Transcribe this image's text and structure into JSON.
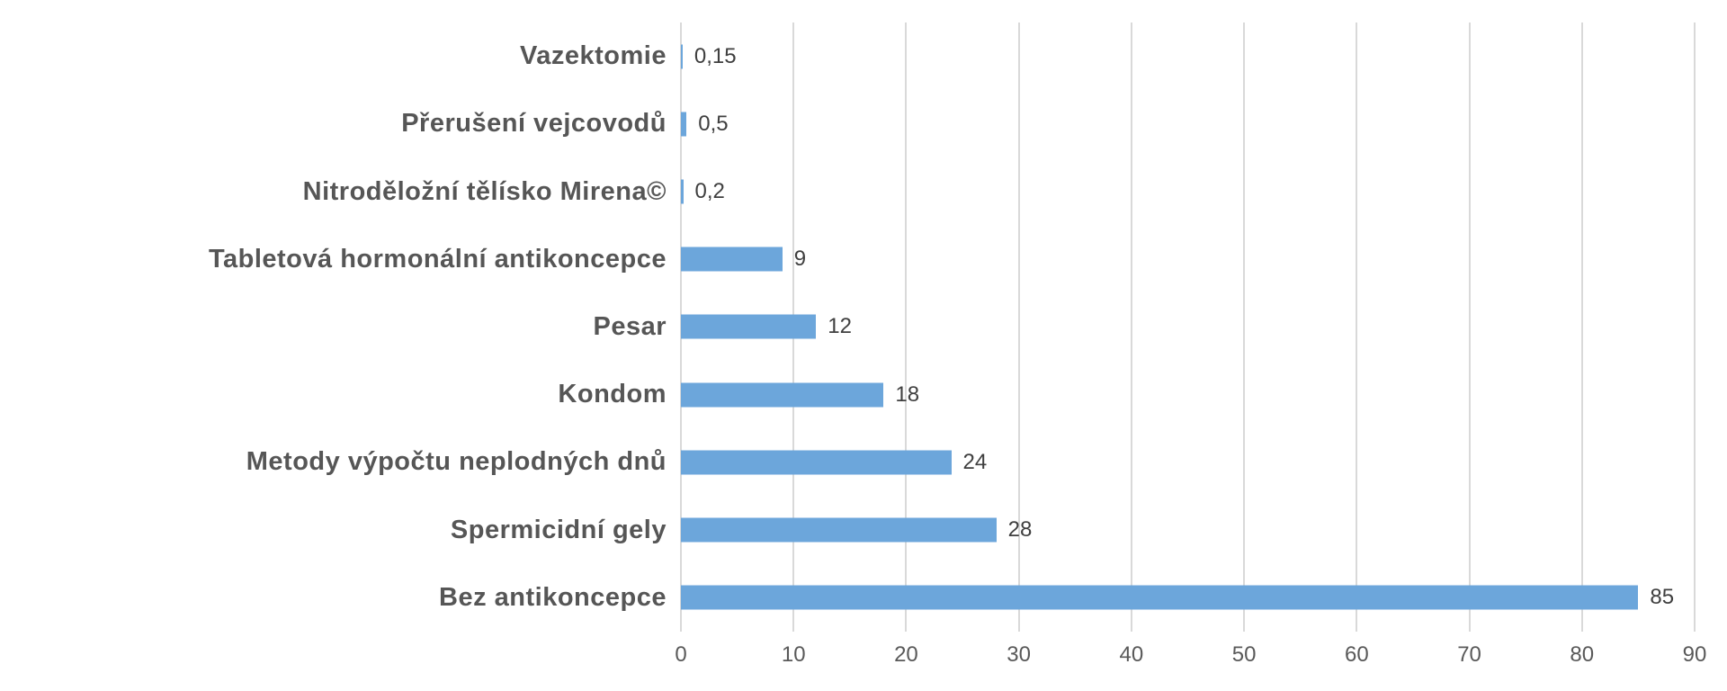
{
  "chart_data": {
    "type": "bar",
    "orientation": "horizontal",
    "title": "",
    "xlabel": "",
    "ylabel": "",
    "categories": [
      "Vazektomie",
      "Přerušení vejcovodů",
      "Nitroděložní tělísko Mirena©",
      "Tabletová hormonální antikoncepce",
      "Pesar",
      "Kondom",
      "Metody výpočtu neplodných dnů",
      "Spermicidní gely",
      "Bez antikoncepce"
    ],
    "values": [
      0.15,
      0.5,
      0.2,
      9,
      12,
      18,
      24,
      28,
      85
    ],
    "value_labels": [
      "0,15",
      "0,5",
      "0,2",
      "9",
      "12",
      "18",
      "24",
      "28",
      "85"
    ],
    "xlim": [
      0,
      90
    ],
    "xticks": [
      0,
      10,
      20,
      30,
      40,
      50,
      60,
      70,
      80,
      90
    ],
    "xtick_labels": [
      "0",
      "10",
      "20",
      "30",
      "40",
      "50",
      "60",
      "70",
      "80",
      "90"
    ],
    "grid": "vertical-on",
    "legend": "none",
    "colors": {
      "bar": "#6CA6DB",
      "gridline": "#D9D9D9",
      "category_label": "#565656",
      "value_label": "#3F3F3F",
      "tick_label": "#595959",
      "background": "#FFFFFF"
    }
  }
}
